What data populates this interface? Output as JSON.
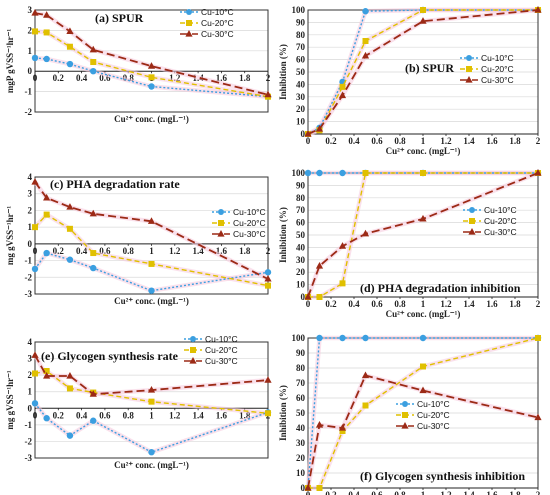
{
  "colors": {
    "s10": "#3b9fe0",
    "s20": "#e0c000",
    "s30": "#9c2a16",
    "halo": "#f6c8dc"
  },
  "chart_data": [
    {
      "type": "line",
      "title": "(a) SPUR",
      "xlabel": "Cu²⁺ conc. (mgL⁻¹)",
      "ylabel": "mgP gVSS⁻¹hr⁻¹",
      "xlim": [
        0,
        2
      ],
      "ylim": [
        -2,
        3
      ],
      "xticks": [
        "0",
        "0.2",
        "0.4",
        "0.6",
        "0.8",
        "1",
        "1.2",
        "1.4",
        "1.6",
        "1.8",
        "2"
      ],
      "yticks": [
        "-2",
        "-1",
        "0",
        "1",
        "2",
        "3"
      ],
      "legend": "top-right",
      "series": [
        {
          "name": "Cu-10°C",
          "x": [
            0,
            0.1,
            0.3,
            0.5,
            1,
            2
          ],
          "y": [
            0.65,
            0.6,
            0.35,
            0.0,
            -0.75,
            -1.25
          ]
        },
        {
          "name": "Cu-20°C",
          "x": [
            0,
            0.1,
            0.3,
            0.5,
            1,
            2
          ],
          "y": [
            1.95,
            1.9,
            1.2,
            0.45,
            -0.3,
            -1.25
          ]
        },
        {
          "name": "Cu-30°C",
          "x": [
            0,
            0.1,
            0.3,
            0.5,
            1,
            2
          ],
          "y": [
            2.85,
            2.75,
            1.95,
            1.05,
            0.25,
            -1.15
          ]
        }
      ]
    },
    {
      "type": "line",
      "title": "(b) SPUR",
      "xlabel": "Cu²⁺ conc. (mgL⁻¹)",
      "ylabel": "Inhibition (%)",
      "xlim": [
        0,
        2
      ],
      "ylim": [
        0,
        100
      ],
      "xticks": [
        "0",
        "0.2",
        "0.4",
        "0.6",
        "0.8",
        "1",
        "1.2",
        "1.4",
        "1.6",
        "1.8",
        "2"
      ],
      "yticks": [
        "0",
        "10",
        "20",
        "30",
        "40",
        "50",
        "60",
        "70",
        "80",
        "90",
        "100"
      ],
      "legend": "right",
      "series": [
        {
          "name": "Cu-10°C",
          "x": [
            0,
            0.1,
            0.3,
            0.5,
            1,
            2
          ],
          "y": [
            0,
            5,
            42,
            99,
            100,
            100
          ]
        },
        {
          "name": "Cu-20°C",
          "x": [
            0,
            0.1,
            0.3,
            0.5,
            1,
            2
          ],
          "y": [
            0,
            3,
            38,
            75,
            100,
            100
          ]
        },
        {
          "name": "Cu-30°C",
          "x": [
            0,
            0.1,
            0.3,
            0.5,
            1,
            2
          ],
          "y": [
            0,
            4,
            31,
            63,
            91,
            100
          ]
        }
      ]
    },
    {
      "type": "line",
      "title": "(c) PHA degradation rate",
      "xlabel": "Cu²⁺ conc. (mgL⁻¹)",
      "ylabel": "mg gVSS⁻¹hr⁻¹",
      "xlim": [
        0,
        2
      ],
      "ylim": [
        -3,
        4
      ],
      "xticks": [
        "0",
        "0.2",
        "0.4",
        "0.6",
        "0.8",
        "1",
        "1.2",
        "1.4",
        "1.6",
        "1.8",
        "2"
      ],
      "yticks": [
        "-3",
        "-2",
        "-1",
        "0",
        "1",
        "2",
        "3",
        "4"
      ],
      "legend": "right",
      "series": [
        {
          "name": "Cu-10°C",
          "x": [
            0,
            0.1,
            0.3,
            0.5,
            1,
            2
          ],
          "y": [
            -1.5,
            -0.55,
            -0.95,
            -1.45,
            -2.8,
            -1.7
          ]
        },
        {
          "name": "Cu-20°C",
          "x": [
            0,
            0.1,
            0.3,
            0.5,
            1,
            2
          ],
          "y": [
            1.0,
            1.75,
            0.9,
            -0.55,
            -1.2,
            -2.5
          ]
        },
        {
          "name": "Cu-30°C",
          "x": [
            0,
            0.1,
            0.3,
            0.5,
            1,
            2
          ],
          "y": [
            3.7,
            2.75,
            2.2,
            1.8,
            1.35,
            -2.1
          ]
        }
      ]
    },
    {
      "type": "line",
      "title": "(d) PHA degradation inhibition",
      "xlabel": "Cu²⁺ conc. (mgL⁻¹)",
      "ylabel": "Inhibition (%)",
      "xlim": [
        0,
        2
      ],
      "ylim": [
        0,
        100
      ],
      "xticks": [
        "0",
        "0.2",
        "0.4",
        "0.6",
        "0.8",
        "1",
        "1.2",
        "1.4",
        "1.6",
        "1.8",
        "2"
      ],
      "yticks": [
        "0",
        "10",
        "20",
        "30",
        "40",
        "50",
        "60",
        "70",
        "80",
        "90",
        "100"
      ],
      "legend": "right",
      "series": [
        {
          "name": "Cu-10°C",
          "x": [
            0,
            0.1,
            0.3,
            0.5,
            1,
            2
          ],
          "y": [
            100,
            100,
            100,
            100,
            100,
            100
          ]
        },
        {
          "name": "Cu-20°C",
          "x": [
            0,
            0.1,
            0.3,
            0.5,
            1,
            2
          ],
          "y": [
            0,
            0,
            11,
            100,
            100,
            100
          ]
        },
        {
          "name": "Cu-30°C",
          "x": [
            0,
            0.1,
            0.3,
            0.5,
            1,
            2
          ],
          "y": [
            0,
            25,
            41,
            51,
            63,
            100
          ]
        }
      ]
    },
    {
      "type": "line",
      "title": "(e) Glycogen synthesis rate",
      "xlabel": "Cu²⁺ conc. (mgL⁻¹)",
      "ylabel": "mg gVSS⁻¹hr⁻¹",
      "xlim": [
        0,
        2
      ],
      "ylim": [
        -3,
        4
      ],
      "xticks": [
        "0",
        "0.2",
        "0.4",
        "0.6",
        "0.8",
        "1",
        "1.2",
        "1.4",
        "1.6",
        "1.8",
        "2"
      ],
      "yticks": [
        "-3",
        "-2",
        "-1",
        "0",
        "1",
        "2",
        "3",
        "4"
      ],
      "legend": "top-right",
      "series": [
        {
          "name": "Cu-10°C",
          "x": [
            0,
            0.1,
            0.3,
            0.5,
            1,
            2
          ],
          "y": [
            0.3,
            -0.6,
            -1.65,
            -0.75,
            -2.65,
            -0.25
          ]
        },
        {
          "name": "Cu-20°C",
          "x": [
            0,
            0.1,
            0.3,
            0.5,
            1,
            2
          ],
          "y": [
            2.1,
            2.25,
            1.2,
            0.95,
            0.4,
            -0.3
          ]
        },
        {
          "name": "Cu-30°C",
          "x": [
            0,
            0.1,
            0.3,
            0.5,
            1,
            2
          ],
          "y": [
            3.2,
            1.95,
            1.95,
            0.85,
            1.1,
            1.7
          ]
        }
      ]
    },
    {
      "type": "line",
      "title": "(f) Glycogen synthesis inhibition",
      "xlabel": "Cu²⁺ conc. (mgL⁻¹)",
      "ylabel": "Inhibition (%)",
      "xlim": [
        0,
        2
      ],
      "ylim": [
        0,
        100
      ],
      "xticks": [
        "0",
        "0.2",
        "0.4",
        "0.6",
        "0.8",
        "1",
        "1.2",
        "1.4",
        "1.6",
        "1.8",
        "2"
      ],
      "yticks": [
        "0",
        "10",
        "20",
        "30",
        "40",
        "50",
        "60",
        "70",
        "80",
        "90",
        "100"
      ],
      "legend": "right",
      "series": [
        {
          "name": "Cu-10°C",
          "x": [
            0,
            0.1,
            0.3,
            0.5,
            1,
            2
          ],
          "y": [
            0,
            100,
            100,
            100,
            100,
            100
          ]
        },
        {
          "name": "Cu-20°C",
          "x": [
            0,
            0.1,
            0.3,
            0.5,
            1,
            2
          ],
          "y": [
            0,
            0,
            38,
            55,
            81,
            100
          ]
        },
        {
          "name": "Cu-30°C",
          "x": [
            0,
            0.1,
            0.3,
            0.5,
            1,
            2
          ],
          "y": [
            0,
            42,
            40,
            75,
            65,
            47
          ]
        }
      ]
    }
  ]
}
